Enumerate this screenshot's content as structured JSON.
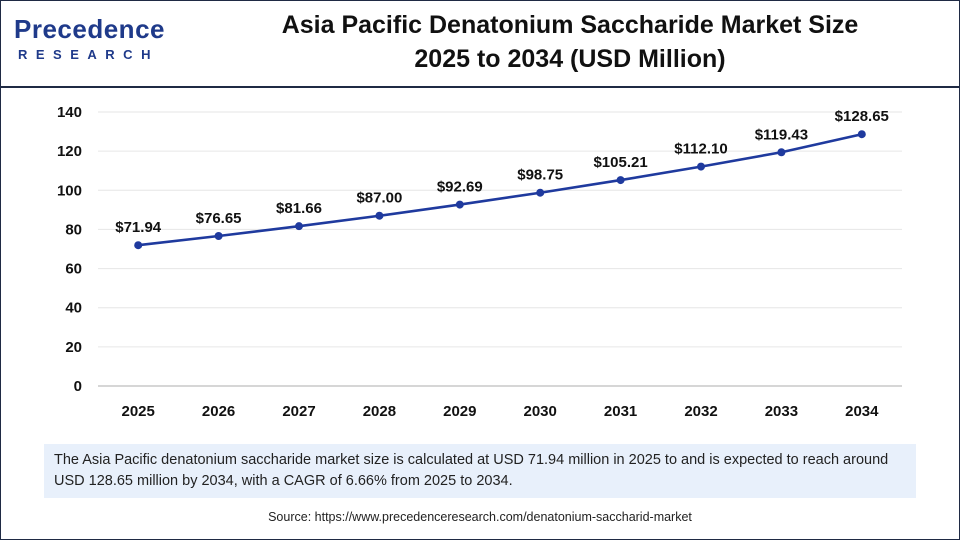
{
  "header": {
    "logo_word": "Precedence",
    "logo_sub": "RESEARCH",
    "title_line1": "Asia Pacific Denatonium Saccharide Market Size",
    "title_line2": "2025 to 2034 (USD Million)"
  },
  "colors": {
    "line": "#1f3a9e",
    "brand": "#1f3a8a",
    "note_bg": "#e8f0fb"
  },
  "chart_data": {
    "type": "line",
    "title": "Asia Pacific Denatonium Saccharide Market Size 2025 to 2034 (USD Million)",
    "xlabel": "",
    "ylabel": "",
    "categories": [
      "2025",
      "2026",
      "2027",
      "2028",
      "2029",
      "2030",
      "2031",
      "2032",
      "2033",
      "2034"
    ],
    "series": [
      {
        "values": [
          71.94,
          76.65,
          81.66,
          87.0,
          92.69,
          98.75,
          105.21,
          112.1,
          119.43,
          128.65
        ],
        "labels": [
          "$71.94",
          "$76.65",
          "$81.66",
          "$87.00",
          "$92.69",
          "$98.75",
          "$105.21",
          "$112.10",
          "$119.43",
          "$128.65"
        ]
      }
    ],
    "ylim": [
      0,
      140
    ],
    "yticks": [
      "0",
      "20",
      "40",
      "60",
      "80",
      "100",
      "120",
      "140"
    ],
    "grid": true,
    "legend": "none"
  },
  "note": "The Asia Pacific denatonium saccharide market size is calculated at USD 71.94 million in 2025 to and is expected to reach around USD 128.65 million by 2034, with a CAGR of 6.66% from 2025 to 2034.",
  "source": "Source: https://www.precedenceresearch.com/denatonium-saccharid-market"
}
